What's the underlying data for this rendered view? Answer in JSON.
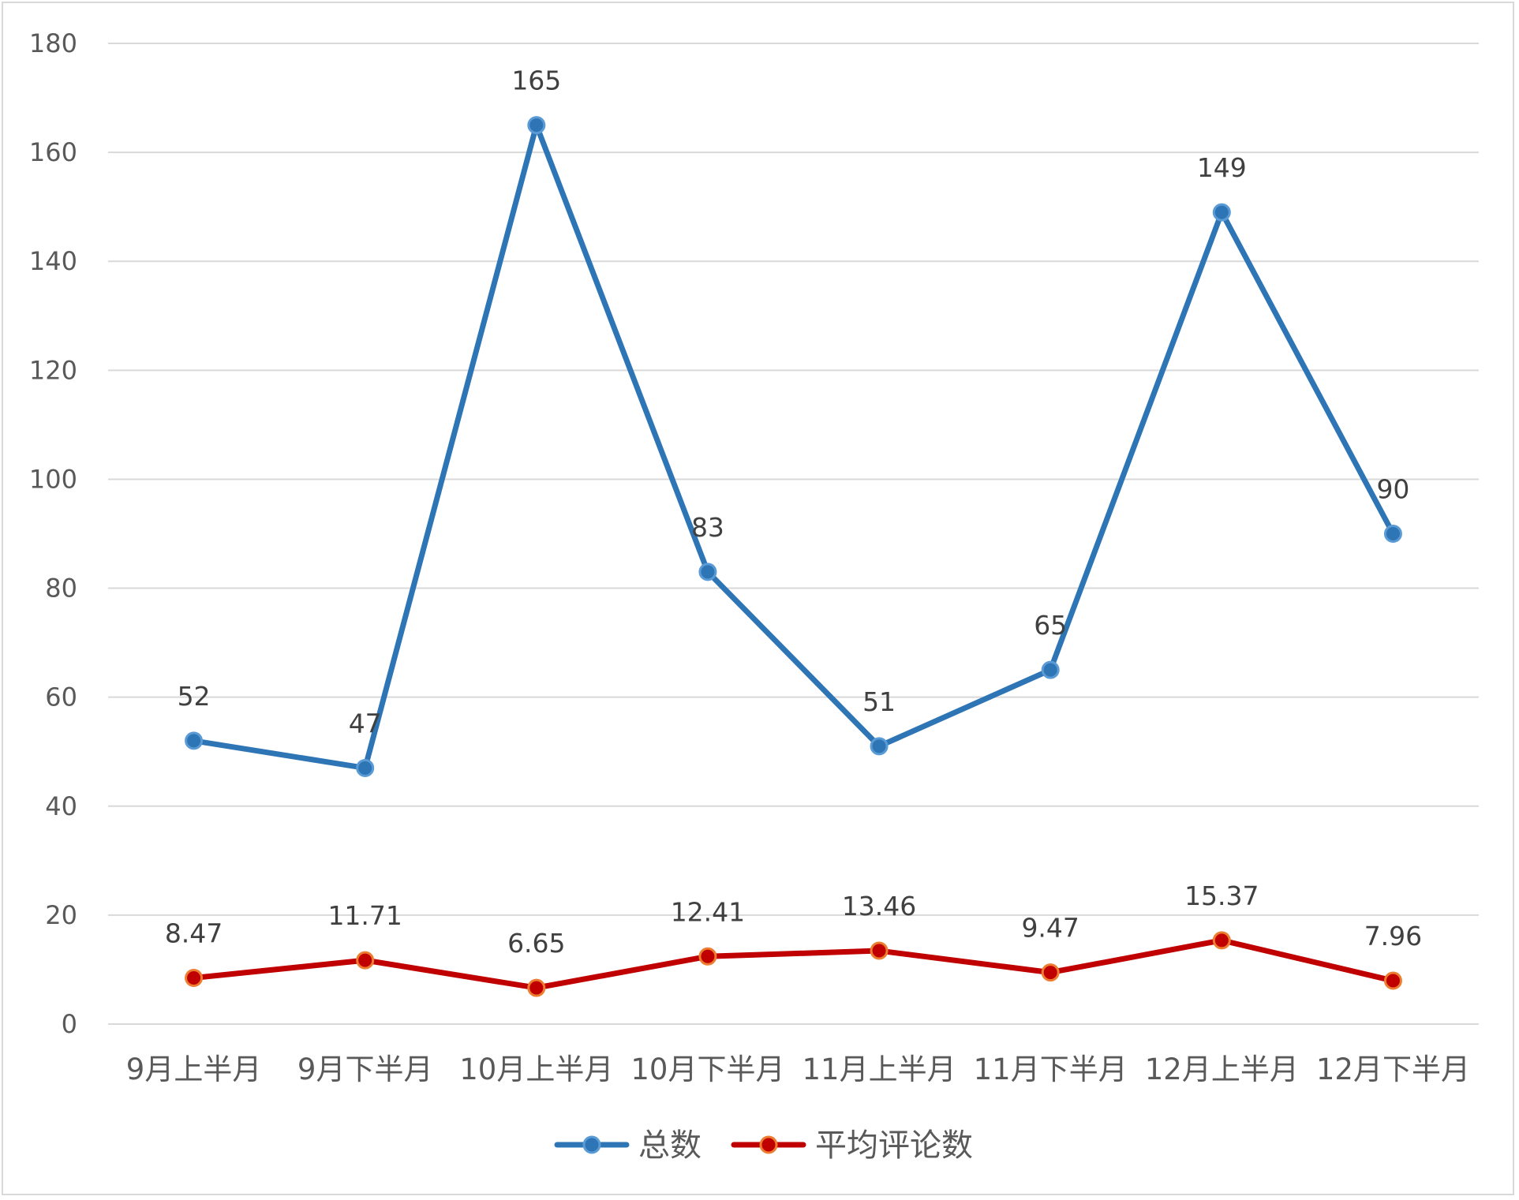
{
  "chart_data": {
    "type": "line",
    "categories": [
      "9月上半月",
      "9月下半月",
      "10月上半月",
      "10月下半月",
      "11月上半月",
      "11月下半月",
      "12月上半月",
      "12月下半月"
    ],
    "series": [
      {
        "name": "总数",
        "color": "#2e75b6",
        "values": [
          52,
          47,
          165,
          83,
          51,
          65,
          149,
          90
        ],
        "labels": [
          "52",
          "47",
          "165",
          "83",
          "51",
          "65",
          "149",
          "90"
        ]
      },
      {
        "name": "平均评论数",
        "color": "#c00000",
        "values": [
          8.47,
          11.71,
          6.65,
          12.41,
          13.46,
          9.47,
          15.37,
          7.96
        ],
        "labels": [
          "8.47",
          "11.71",
          "6.65",
          "12.41",
          "13.46",
          "9.47",
          "15.37",
          "7.96"
        ]
      }
    ],
    "ylim": [
      0,
      180
    ],
    "yticks": [
      "0",
      "20",
      "40",
      "60",
      "80",
      "100",
      "120",
      "140",
      "160",
      "180"
    ],
    "grid": true,
    "legend": "bottom",
    "colors": {
      "marker_fill_blue": "#2e75b6",
      "marker_fill_red": "#c00000",
      "marker_stroke_red": "#ed7d31",
      "gridline": "#d9d9d9"
    }
  }
}
